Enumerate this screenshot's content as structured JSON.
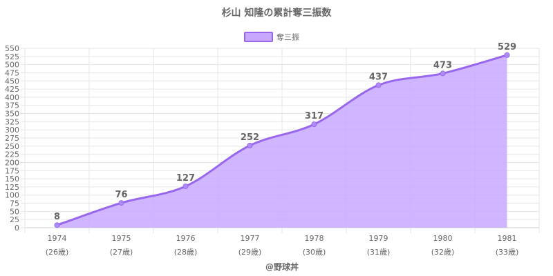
{
  "colors": {
    "line": "#9966ee",
    "fill": "#c8a8ff",
    "point": "#b08cf7",
    "grid": "#e6e6e6",
    "text": "#666666"
  },
  "chart_data": {
    "type": "area",
    "title": "杉山 知隆の累計奪三振数",
    "categories": [
      "1974",
      "1975",
      "1976",
      "1977",
      "1978",
      "1979",
      "1980",
      "1981"
    ],
    "sublabels": [
      "(26歳)",
      "(27歳)",
      "(28歳)",
      "(29歳)",
      "(30歳)",
      "(31歳)",
      "(32歳)",
      "(33歳)"
    ],
    "series": [
      {
        "name": "奪三振",
        "values": [
          8,
          76,
          127,
          252,
          317,
          437,
          473,
          529
        ]
      }
    ],
    "ylim": [
      0,
      550
    ],
    "ystep": 25,
    "grid": true,
    "legend": "top-center",
    "xlabel": "",
    "ylabel": ""
  },
  "credit": "@野球丼"
}
